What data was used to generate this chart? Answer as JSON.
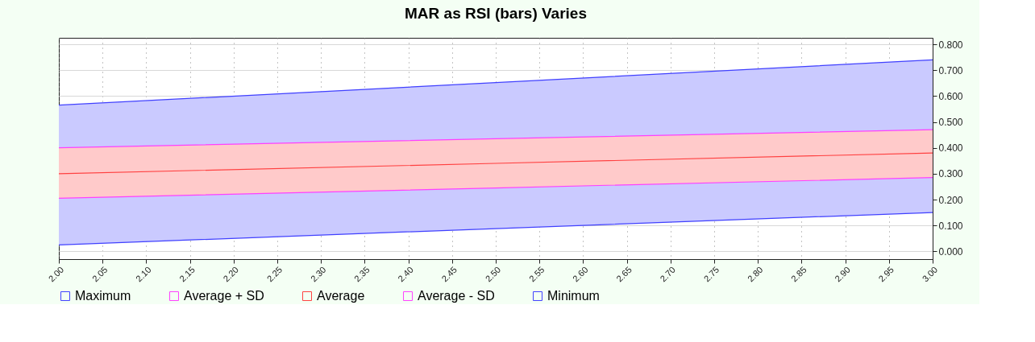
{
  "chart_data": {
    "type": "line",
    "title": "MAR as RSI (bars) Varies",
    "x": [
      2.0,
      2.5,
      3.0
    ],
    "series": [
      {
        "name": "Maximum",
        "color": "#4040ff",
        "values": [
          0.565,
          0.652,
          0.74
        ],
        "lower": [
          0.025,
          0.088,
          0.15
        ],
        "upper": [
          0.565,
          0.652,
          0.74
        ]
      },
      {
        "name": "Average + SD",
        "color": "#ff40ff",
        "values": [
          0.4,
          0.435,
          0.47
        ]
      },
      {
        "name": "Average",
        "color": "#ff4040",
        "values": [
          0.3,
          0.34,
          0.38
        ],
        "lower": [
          0.205,
          0.245,
          0.285
        ],
        "upper": [
          0.4,
          0.435,
          0.47
        ]
      },
      {
        "name": "Average - SD",
        "color": "#ff40ff",
        "values": [
          0.205,
          0.245,
          0.285
        ]
      },
      {
        "name": "Minimum",
        "color": "#4040ff",
        "values": [
          0.025,
          0.088,
          0.15
        ]
      }
    ],
    "xlim": [
      2.0,
      3.0
    ],
    "xticks": [
      {
        "value": 2.0,
        "label": "2.00"
      },
      {
        "value": 2.05,
        "label": "2.05"
      },
      {
        "value": 2.1,
        "label": "2.10"
      },
      {
        "value": 2.15,
        "label": "2.15"
      },
      {
        "value": 2.2,
        "label": "2.20"
      },
      {
        "value": 2.25,
        "label": "2.25"
      },
      {
        "value": 2.3,
        "label": "2.30"
      },
      {
        "value": 2.35,
        "label": "2.35"
      },
      {
        "value": 2.4,
        "label": "2.40"
      },
      {
        "value": 2.45,
        "label": "2.45"
      },
      {
        "value": 2.5,
        "label": "2.50"
      },
      {
        "value": 2.55,
        "label": "2.55"
      },
      {
        "value": 2.6,
        "label": "2.60"
      },
      {
        "value": 2.65,
        "label": "2.65"
      },
      {
        "value": 2.7,
        "label": "2.70"
      },
      {
        "value": 2.75,
        "label": "2.75"
      },
      {
        "value": 2.8,
        "label": "2.80"
      },
      {
        "value": 2.85,
        "label": "2.85"
      },
      {
        "value": 2.9,
        "label": "2.90"
      },
      {
        "value": 2.95,
        "label": "2.95"
      },
      {
        "value": 3.0,
        "label": "3.00"
      }
    ],
    "ylim": [
      -0.03,
      0.825
    ],
    "yticks": [
      {
        "value": 0.0,
        "label": "0.000"
      },
      {
        "value": 0.1,
        "label": "0.100"
      },
      {
        "value": 0.2,
        "label": "0.200"
      },
      {
        "value": 0.3,
        "label": "0.300"
      },
      {
        "value": 0.4,
        "label": "0.400"
      },
      {
        "value": 0.5,
        "label": "0.500"
      },
      {
        "value": 0.6,
        "label": "0.600"
      },
      {
        "value": 0.7,
        "label": "0.700"
      },
      {
        "value": 0.8,
        "label": "0.800"
      }
    ],
    "grid": true,
    "legend": "bottom",
    "marker": "none",
    "line_style": "solid"
  }
}
